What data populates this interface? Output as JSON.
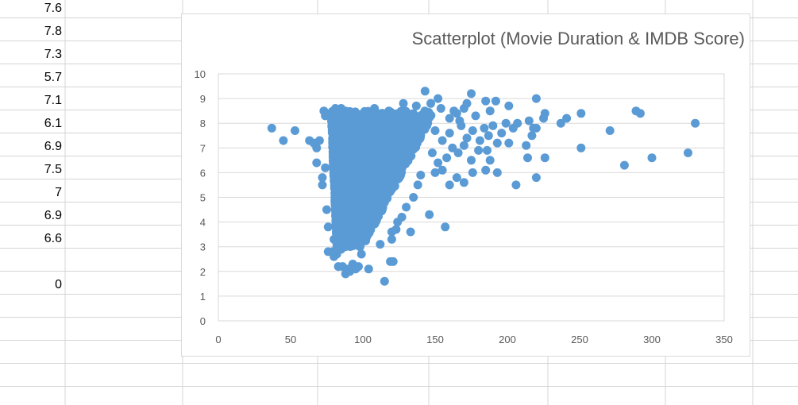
{
  "spreadsheet": {
    "column_a_values": [
      "7.6",
      "7.8",
      "7.3",
      "5.7",
      "7.1",
      "6.1",
      "6.9",
      "7.5",
      "7",
      "6.9",
      "6.6",
      "",
      "0"
    ]
  },
  "colors": {
    "marker": "#5b9bd5",
    "gridline": "#d9d9d9",
    "sheet_grid": "#d4d4d4",
    "axis_text": "#595959"
  },
  "chart_data": {
    "type": "scatter",
    "title": "Scatterplot (Movie Duration & IMDB Score)",
    "xlabel": "",
    "ylabel": "",
    "xlim": [
      0,
      350
    ],
    "ylim": [
      0,
      10
    ],
    "x_ticks": [
      0,
      50,
      100,
      150,
      200,
      250,
      300,
      350
    ],
    "y_ticks": [
      0,
      1,
      2,
      3,
      4,
      5,
      6,
      7,
      8,
      9,
      10
    ],
    "grid": "horizontal",
    "legend": "none",
    "points": [
      {
        "x": 37,
        "y": 7.8
      },
      {
        "x": 45,
        "y": 7.3
      },
      {
        "x": 53,
        "y": 7.7
      },
      {
        "x": 63,
        "y": 7.3
      },
      {
        "x": 66,
        "y": 7.2
      },
      {
        "x": 68,
        "y": 7.0
      },
      {
        "x": 70,
        "y": 7.3
      },
      {
        "x": 68,
        "y": 6.4
      },
      {
        "x": 73,
        "y": 8.5
      },
      {
        "x": 74,
        "y": 8.3
      },
      {
        "x": 72,
        "y": 5.8
      },
      {
        "x": 72,
        "y": 5.5
      },
      {
        "x": 74,
        "y": 6.2
      },
      {
        "x": 75,
        "y": 4.5
      },
      {
        "x": 76,
        "y": 3.8
      },
      {
        "x": 76,
        "y": 2.8
      },
      {
        "x": 79,
        "y": 2.8
      },
      {
        "x": 80,
        "y": 2.6
      },
      {
        "x": 80,
        "y": 3.3
      },
      {
        "x": 82,
        "y": 2.7
      },
      {
        "x": 83,
        "y": 2.2
      },
      {
        "x": 85,
        "y": 2.9
      },
      {
        "x": 86,
        "y": 2.2
      },
      {
        "x": 88,
        "y": 1.9
      },
      {
        "x": 90,
        "y": 2.1
      },
      {
        "x": 91,
        "y": 2.0
      },
      {
        "x": 93,
        "y": 2.3
      },
      {
        "x": 95,
        "y": 2.1
      },
      {
        "x": 97,
        "y": 2.2
      },
      {
        "x": 98,
        "y": 3.0
      },
      {
        "x": 99,
        "y": 2.7
      },
      {
        "x": 104,
        "y": 2.1
      },
      {
        "x": 112,
        "y": 3.1
      },
      {
        "x": 115,
        "y": 1.6
      },
      {
        "x": 119,
        "y": 2.4
      },
      {
        "x": 121,
        "y": 2.4
      },
      {
        "x": 120,
        "y": 3.3
      },
      {
        "x": 120,
        "y": 3.6
      },
      {
        "x": 123,
        "y": 3.7
      },
      {
        "x": 133,
        "y": 3.6
      },
      {
        "x": 146,
        "y": 4.3
      },
      {
        "x": 157,
        "y": 3.8
      },
      {
        "x": 81,
        "y": 8.6
      },
      {
        "x": 85,
        "y": 8.6
      },
      {
        "x": 88,
        "y": 8.5
      },
      {
        "x": 143,
        "y": 9.3
      },
      {
        "x": 152,
        "y": 9.0
      },
      {
        "x": 175,
        "y": 9.2
      },
      {
        "x": 185,
        "y": 8.9
      },
      {
        "x": 192,
        "y": 8.9
      },
      {
        "x": 201,
        "y": 8.7
      },
      {
        "x": 220,
        "y": 9.0
      },
      {
        "x": 165,
        "y": 8.4
      },
      {
        "x": 170,
        "y": 8.6
      },
      {
        "x": 178,
        "y": 8.3
      },
      {
        "x": 188,
        "y": 8.5
      },
      {
        "x": 160,
        "y": 7.6
      },
      {
        "x": 168,
        "y": 7.9
      },
      {
        "x": 172,
        "y": 7.4
      },
      {
        "x": 176,
        "y": 7.7
      },
      {
        "x": 181,
        "y": 7.3
      },
      {
        "x": 184,
        "y": 7.8
      },
      {
        "x": 187,
        "y": 7.5
      },
      {
        "x": 190,
        "y": 7.9
      },
      {
        "x": 193,
        "y": 7.2
      },
      {
        "x": 196,
        "y": 7.6
      },
      {
        "x": 199,
        "y": 8.0
      },
      {
        "x": 201,
        "y": 7.2
      },
      {
        "x": 204,
        "y": 7.8
      },
      {
        "x": 207,
        "y": 8.0
      },
      {
        "x": 213,
        "y": 7.1
      },
      {
        "x": 215,
        "y": 8.1
      },
      {
        "x": 217,
        "y": 7.5
      },
      {
        "x": 218,
        "y": 7.8
      },
      {
        "x": 220,
        "y": 7.8
      },
      {
        "x": 225,
        "y": 8.2
      },
      {
        "x": 226,
        "y": 8.4
      },
      {
        "x": 237,
        "y": 8.0
      },
      {
        "x": 241,
        "y": 8.2
      },
      {
        "x": 251,
        "y": 8.4
      },
      {
        "x": 251,
        "y": 7.0
      },
      {
        "x": 271,
        "y": 7.7
      },
      {
        "x": 281,
        "y": 6.3
      },
      {
        "x": 289,
        "y": 8.5
      },
      {
        "x": 292,
        "y": 8.4
      },
      {
        "x": 300,
        "y": 6.6
      },
      {
        "x": 325,
        "y": 6.8
      },
      {
        "x": 330,
        "y": 8.0
      },
      {
        "x": 206,
        "y": 5.5
      },
      {
        "x": 214,
        "y": 6.6
      },
      {
        "x": 220,
        "y": 5.8
      },
      {
        "x": 226,
        "y": 6.6
      },
      {
        "x": 193,
        "y": 6.0
      },
      {
        "x": 185,
        "y": 6.1
      },
      {
        "x": 176,
        "y": 6.0
      },
      {
        "x": 170,
        "y": 5.6
      },
      {
        "x": 165,
        "y": 5.8
      },
      {
        "x": 160,
        "y": 5.5
      },
      {
        "x": 175,
        "y": 6.5
      },
      {
        "x": 180,
        "y": 6.9
      },
      {
        "x": 186,
        "y": 6.9
      },
      {
        "x": 188,
        "y": 6.5
      },
      {
        "x": 166,
        "y": 6.8
      },
      {
        "x": 170,
        "y": 7.1
      },
      {
        "x": 155,
        "y": 6.1
      },
      {
        "x": 150,
        "y": 6.0
      },
      {
        "x": 158,
        "y": 6.6
      },
      {
        "x": 162,
        "y": 7.0
      },
      {
        "x": 128,
        "y": 8.8
      },
      {
        "x": 137,
        "y": 8.7
      },
      {
        "x": 147,
        "y": 8.8
      },
      {
        "x": 154,
        "y": 8.6
      },
      {
        "x": 160,
        "y": 8.2
      },
      {
        "x": 163,
        "y": 8.5
      },
      {
        "x": 167,
        "y": 8.1
      },
      {
        "x": 172,
        "y": 8.8
      },
      {
        "x": 150,
        "y": 7.7
      },
      {
        "x": 155,
        "y": 7.3
      },
      {
        "x": 148,
        "y": 6.8
      },
      {
        "x": 152,
        "y": 6.4
      },
      {
        "x": 140,
        "y": 5.9
      },
      {
        "x": 138,
        "y": 5.5
      },
      {
        "x": 135,
        "y": 5.0
      },
      {
        "x": 130,
        "y": 4.6
      },
      {
        "x": 127,
        "y": 4.2
      },
      {
        "x": 124,
        "y": 4.0
      },
      {
        "x": 108,
        "y": 8.6
      },
      {
        "x": 118,
        "y": 8.5
      }
    ],
    "dense_cluster": {
      "x_range": [
        74,
        150
      ],
      "y_range": [
        3.0,
        8.5
      ]
    }
  }
}
